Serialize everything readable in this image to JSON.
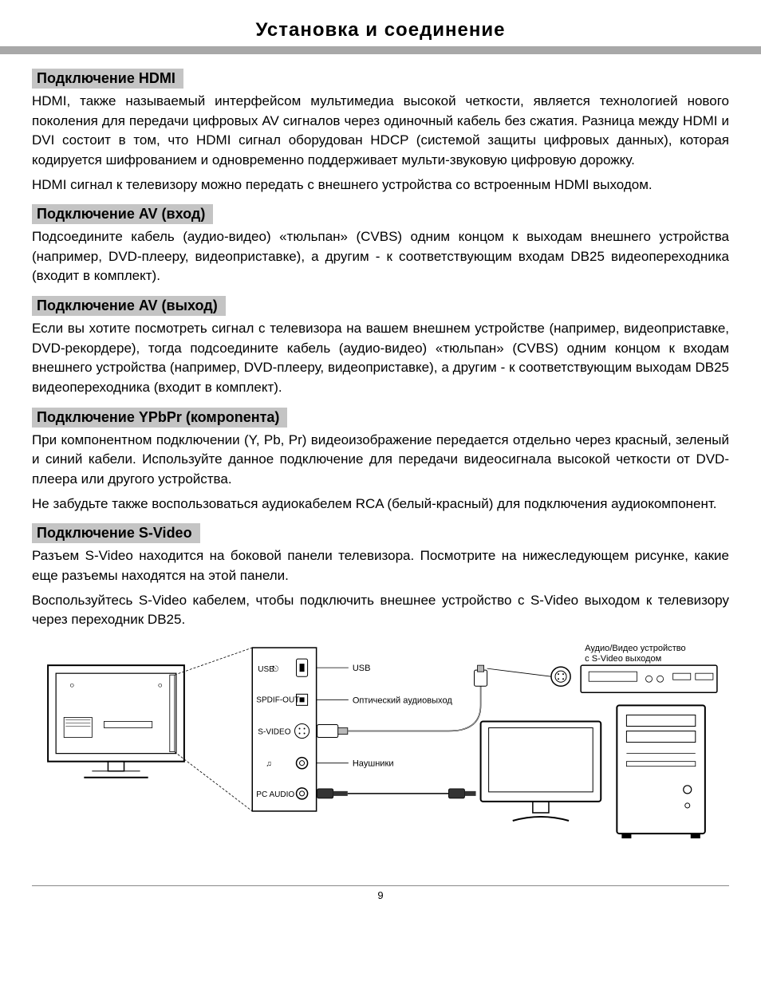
{
  "page": {
    "title": "Установка и соединение",
    "number": "9"
  },
  "sections": [
    {
      "heading": "Подключение HDMI",
      "paragraphs": [
        "HDMI, также называемый интерфейсом мультимедиа высокой четкости, является технологией нового поколения для передачи цифровых AV сигналов через одиночный кабель без сжатия. Разница между HDMI и DVI состоит в том, что HDMI сигнал оборудован HDCP (системой защиты цифровых данных), которая кодируется шифрованием и одновременно поддерживает мульти-звуковую цифровую дорожку.",
        "HDMI сигнал к телевизору можно передать с внешнего устройства со встроенным HDMI выходом."
      ]
    },
    {
      "heading": "Подключение AV (вход)",
      "paragraphs": [
        "Подсоедините кабель (аудио-видео) «тюльпан» (CVBS) одним концом к выходам внешнего устройства (например, DVD-плееру, видеоприставке), а другим - к соответствующим входам DB25 видеопереходника (входит в комплект)."
      ]
    },
    {
      "heading": "Подключение AV (выход)",
      "paragraphs": [
        "Если вы хотите посмотреть сигнал с телевизора на вашем внешнем устройстве (например, видеоприставке, DVD-рекордере), тогда подсоедините кабель (аудио-видео) «тюльпан» (CVBS) одним концом к входам внешнего устройства (например, DVD-плееру, видеоприставке), а другим - к соответствующим  выходам DB25 видеопереходника (входит в комплект)."
      ]
    },
    {
      "heading": "Подключение  YPbPr (комponента)",
      "paragraphs": [
        "При компонентном подключении (Y, Pb, Pr) видеоизображение передается отдельно через красный, зеленый и синий кабели. Используйте данное подключение для передачи видеосигнала высокой четкости от DVD-плеера или другого устройства.",
        "Не забудьте также воспользоваться аудиокабелем RCA (белый-красный) для подключения аудиокомпонент."
      ]
    },
    {
      "heading": "Подключение  S-Video",
      "paragraphs": [
        "Разъем S-Video находится на боковой панели телевизора. Посмотрите на нижеследующем рисунке, какие еще разъемы находятся на этой панели.",
        "Воспользуйтесь S-Video кабелем, чтобы подключить внешнее устройство с S-Video выходом к телевизору через переходник DB25."
      ]
    }
  ],
  "diagram": {
    "caption_device": "Аудио/Видео устройство с S-Video выходом",
    "panel_labels": {
      "usb": "USB",
      "spdif": "SPDIF-OUT",
      "svideo": "S-VIDEO",
      "headphone_icon": "♫",
      "pcaudio": "PC AUDIO"
    },
    "side_labels": {
      "usb": "USB",
      "optical": "Оптический аудиовыход",
      "headphones": "Наушники"
    },
    "colors": {
      "stroke": "#000000",
      "fill_bg": "#ffffff",
      "fill_gray": "#d0d0d0"
    }
  }
}
